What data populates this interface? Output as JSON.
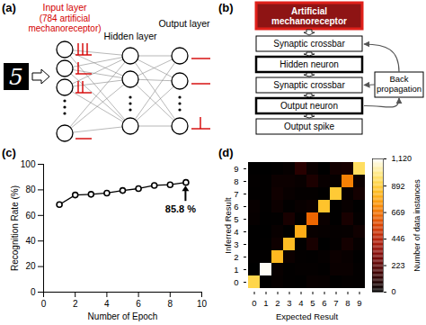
{
  "diagrams": {
    "a": {
      "panel_label": "(a)",
      "input_image_digit": "5",
      "layers": [
        {
          "title": "Input layer",
          "note": [
            "(784 artificial",
            "mechanoreceptor)"
          ]
        },
        {
          "title": "Hidden layer"
        },
        {
          "title": "Output layer"
        }
      ]
    },
    "b": {
      "panel_label": "(b)",
      "boxes": [
        {
          "text": [
            "Artificial",
            "mechanoreceptor"
          ],
          "style": "highlight"
        },
        {
          "text": [
            "Synaptic crossbar"
          ]
        },
        {
          "text": [
            "Hidden neuron"
          ],
          "style": "bold"
        },
        {
          "text": [
            "Synaptic crossbar"
          ]
        },
        {
          "text": [
            "Output neuron"
          ],
          "style": "bold"
        },
        {
          "text": [
            "Output spike"
          ]
        }
      ],
      "feedback": {
        "text": [
          "Back",
          "propagation"
        ]
      }
    }
  },
  "chart_data": [
    {
      "panel_label": "(c)",
      "type": "line",
      "x": [
        1,
        2,
        3,
        4,
        5,
        6,
        7,
        8,
        9
      ],
      "values": [
        68.5,
        76,
        76.5,
        77.5,
        79.5,
        81,
        83.5,
        84,
        85.8
      ],
      "color": "#000000",
      "marker": "circle",
      "xlabel": "Number of Epoch",
      "ylabel": "Recognition Rate (%)",
      "xlim": [
        0,
        10
      ],
      "xticks": [
        0,
        2,
        4,
        6,
        8,
        10
      ],
      "ylim": [
        0,
        100
      ],
      "yticks": [
        0,
        20,
        40,
        60,
        80,
        100
      ],
      "annotation": "85.8 %"
    },
    {
      "panel_label": "(d)",
      "type": "heatmap",
      "x": [
        0,
        1,
        2,
        3,
        4,
        5,
        6,
        7,
        8,
        9
      ],
      "y": [
        0,
        1,
        2,
        3,
        4,
        5,
        6,
        7,
        8,
        9
      ],
      "cells": [
        [
          920,
          0,
          15,
          5,
          3,
          20,
          18,
          3,
          10,
          8
        ],
        [
          0,
          1110,
          20,
          5,
          10,
          10,
          5,
          25,
          25,
          8
        ],
        [
          5,
          5,
          830,
          30,
          8,
          5,
          12,
          30,
          20,
          3
        ],
        [
          3,
          3,
          35,
          840,
          2,
          60,
          1,
          10,
          50,
          15
        ],
        [
          2,
          0,
          20,
          2,
          800,
          20,
          15,
          12,
          15,
          40
        ],
        [
          15,
          2,
          5,
          60,
          5,
          640,
          25,
          3,
          60,
          10
        ],
        [
          20,
          5,
          30,
          5,
          20,
          30,
          860,
          2,
          20,
          3
        ],
        [
          5,
          5,
          40,
          20,
          10,
          10,
          2,
          880,
          15,
          50
        ],
        [
          8,
          5,
          30,
          30,
          20,
          70,
          20,
          15,
          700,
          30
        ],
        [
          2,
          0,
          5,
          15,
          100,
          25,
          0,
          45,
          55,
          950
        ]
      ],
      "xlabel": "Expected Result",
      "ylabel": "Inferred Result",
      "colorbar": {
        "label": "Number of data instances",
        "range": [
          0,
          1120
        ],
        "ticks": [
          0,
          223,
          446,
          669,
          892,
          1120
        ]
      }
    }
  ]
}
